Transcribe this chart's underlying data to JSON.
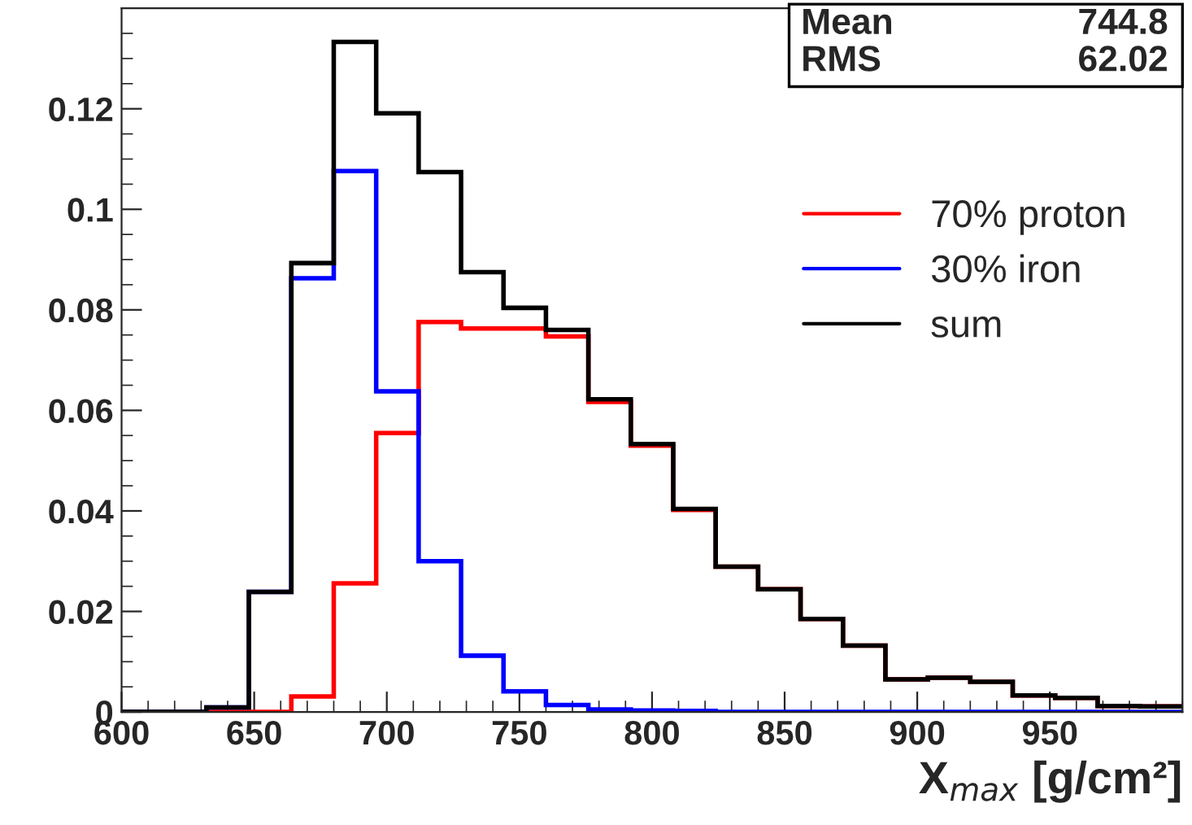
{
  "chart_data": {
    "type": "histogram",
    "xlabel": "X$_{max}$ [g/cm²]",
    "bins": [
      600,
      616,
      632,
      648,
      664,
      680,
      696,
      712,
      728,
      744,
      760,
      776,
      792,
      808,
      824,
      840,
      856,
      872,
      888,
      904,
      920,
      936,
      952,
      968,
      984,
      1000
    ],
    "series": [
      {
        "name": "70% proton",
        "color": "#ff0000",
        "values": [
          0,
          0,
          0,
          0,
          0.0031,
          0.0256,
          0.0555,
          0.0776,
          0.0763,
          0.0763,
          0.0747,
          0.0617,
          0.053,
          0.0402,
          0.0289,
          0.0244,
          0.0185,
          0.0132,
          0.0065,
          0.0068,
          0.006,
          0.0033,
          0.0028,
          0.0012,
          0.0011
        ]
      },
      {
        "name": "30% iron",
        "color": "#0000ff",
        "values": [
          0,
          0,
          0.0009,
          0.0239,
          0.0863,
          0.1076,
          0.0638,
          0.03,
          0.0112,
          0.0041,
          0.0014,
          0.0005,
          0.0003,
          0.0002,
          0,
          0,
          0,
          0,
          0,
          0,
          0,
          0,
          0,
          0,
          0
        ]
      },
      {
        "name": "sum",
        "color": "#000000",
        "values": [
          0,
          0,
          0.0009,
          0.0239,
          0.0893,
          0.1333,
          0.1191,
          0.1074,
          0.0875,
          0.0804,
          0.076,
          0.0622,
          0.0533,
          0.0404,
          0.0289,
          0.0244,
          0.0185,
          0.0132,
          0.0065,
          0.0068,
          0.006,
          0.0033,
          0.0028,
          0.0012,
          0.0011
        ]
      }
    ],
    "xlim": [
      600,
      1000
    ],
    "xticks": [
      600,
      650,
      700,
      750,
      800,
      850,
      900,
      950
    ],
    "ylim": [
      0,
      0.14
    ],
    "yticks": [
      0,
      0.02,
      0.04,
      0.06,
      0.08,
      0.1,
      0.12
    ],
    "grid": false,
    "legend": "center right",
    "annotations": [
      "Mean 744.8",
      "RMS 62.02"
    ]
  }
}
